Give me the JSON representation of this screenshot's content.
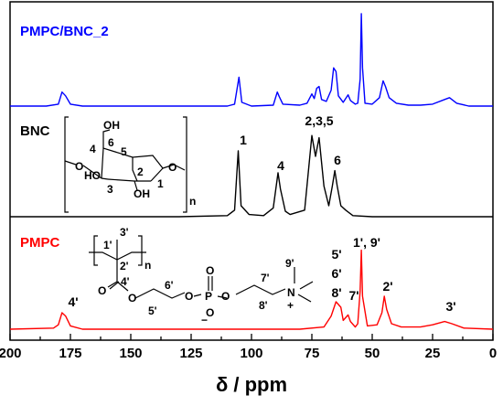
{
  "chart_data": {
    "type": "line",
    "xlabel": "δ / ppm",
    "xlim": [
      200,
      0
    ],
    "x_reversed": true,
    "xticks": [
      200,
      175,
      150,
      125,
      100,
      75,
      50,
      25,
      0
    ],
    "y_ticks_shown": false,
    "grid": false,
    "series": [
      {
        "name": "PMPC/BNC_2",
        "color": "#0000ff",
        "offset": 2,
        "points": [
          [
            200,
            0.01
          ],
          [
            185,
            0.01
          ],
          [
            180,
            0.03
          ],
          [
            178.5,
            0.16
          ],
          [
            177,
            0.12
          ],
          [
            175,
            0.03
          ],
          [
            170,
            0.01
          ],
          [
            150,
            0.01
          ],
          [
            130,
            0.01
          ],
          [
            110,
            0.01
          ],
          [
            107,
            0.03
          ],
          [
            105.2,
            0.32
          ],
          [
            104,
            0.05
          ],
          [
            100,
            0.01
          ],
          [
            91,
            0.02
          ],
          [
            89.3,
            0.16
          ],
          [
            88.5,
            0.11
          ],
          [
            87,
            0.03
          ],
          [
            80,
            0.02
          ],
          [
            77,
            0.04
          ],
          [
            75,
            0.14
          ],
          [
            74,
            0.09
          ],
          [
            73,
            0.2
          ],
          [
            72,
            0.22
          ],
          [
            71,
            0.08
          ],
          [
            69,
            0.06
          ],
          [
            67,
            0.18
          ],
          [
            66,
            0.42
          ],
          [
            65,
            0.38
          ],
          [
            64,
            0.12
          ],
          [
            62,
            0.05
          ],
          [
            60,
            0.13
          ],
          [
            59,
            0.07
          ],
          [
            57,
            0.03
          ],
          [
            56,
            0.04
          ],
          [
            55,
            0.3
          ],
          [
            54.5,
            1.0
          ],
          [
            54,
            0.42
          ],
          [
            53,
            0.04
          ],
          [
            50,
            0.03
          ],
          [
            47,
            0.1
          ],
          [
            45.5,
            0.28
          ],
          [
            44.5,
            0.22
          ],
          [
            43,
            0.1
          ],
          [
            40,
            0.04
          ],
          [
            35,
            0.02
          ],
          [
            30,
            0.02
          ],
          [
            25,
            0.03
          ],
          [
            20,
            0.08
          ],
          [
            18,
            0.1
          ],
          [
            15,
            0.04
          ],
          [
            10,
            0.01
          ],
          [
            0,
            0.01
          ]
        ]
      },
      {
        "name": "BNC",
        "color": "#000000",
        "offset": 1,
        "points": [
          [
            200,
            0.0
          ],
          [
            130,
            0.0
          ],
          [
            110,
            0.01
          ],
          [
            107,
            0.06
          ],
          [
            105.5,
            0.6
          ],
          [
            104.3,
            0.1
          ],
          [
            101,
            0.02
          ],
          [
            95,
            0.01
          ],
          [
            91,
            0.08
          ],
          [
            89,
            0.4
          ],
          [
            88,
            0.25
          ],
          [
            86,
            0.05
          ],
          [
            84,
            0.02
          ],
          [
            78,
            0.06
          ],
          [
            75,
            0.74
          ],
          [
            73.5,
            0.55
          ],
          [
            72,
            0.72
          ],
          [
            70,
            0.28
          ],
          [
            68,
            0.1
          ],
          [
            66.5,
            0.28
          ],
          [
            65.5,
            0.42
          ],
          [
            64.5,
            0.28
          ],
          [
            63,
            0.1
          ],
          [
            61,
            0.06
          ],
          [
            58,
            0.01
          ],
          [
            50,
            0.0
          ],
          [
            0,
            0.0
          ]
        ]
      },
      {
        "name": "PMPC",
        "color": "#ff0000",
        "offset": 0,
        "points": [
          [
            200,
            0.0
          ],
          [
            182,
            0.01
          ],
          [
            180,
            0.04
          ],
          [
            178.5,
            0.15
          ],
          [
            177,
            0.12
          ],
          [
            175,
            0.03
          ],
          [
            170,
            0.0
          ],
          [
            100,
            0.0
          ],
          [
            80,
            0.0
          ],
          [
            70,
            0.02
          ],
          [
            67,
            0.12
          ],
          [
            65,
            0.25
          ],
          [
            63,
            0.2
          ],
          [
            62,
            0.08
          ],
          [
            60,
            0.13
          ],
          [
            59,
            0.07
          ],
          [
            57,
            0.02
          ],
          [
            56,
            0.05
          ],
          [
            55,
            0.35
          ],
          [
            54.5,
            0.72
          ],
          [
            54,
            0.3
          ],
          [
            52,
            0.03
          ],
          [
            48,
            0.04
          ],
          [
            46,
            0.15
          ],
          [
            45,
            0.3
          ],
          [
            44,
            0.18
          ],
          [
            42,
            0.05
          ],
          [
            38,
            0.02
          ],
          [
            30,
            0.02
          ],
          [
            25,
            0.04
          ],
          [
            20,
            0.07
          ],
          [
            17,
            0.05
          ],
          [
            12,
            0.01
          ],
          [
            0,
            0.0
          ]
        ]
      }
    ],
    "series_labels": [
      "PMPC/BNC_2",
      "BNC",
      "PMPC"
    ],
    "peak_labels": [
      {
        "text": "1",
        "x": 105,
        "series": "BNC"
      },
      {
        "text": "4",
        "x": 89,
        "series": "BNC"
      },
      {
        "text": "2,3,5",
        "x": 73,
        "series": "BNC"
      },
      {
        "text": "6",
        "x": 65.5,
        "series": "BNC"
      },
      {
        "text": "4'",
        "x": 178,
        "series": "PMPC"
      },
      {
        "text": "5'",
        "x": 66,
        "series": "PMPC"
      },
      {
        "text": "6'",
        "x": 66,
        "series": "PMPC"
      },
      {
        "text": "8'",
        "x": 66,
        "series": "PMPC"
      },
      {
        "text": "7'",
        "x": 59.5,
        "series": "PMPC"
      },
      {
        "text": "1', 9'",
        "x": 54.5,
        "series": "PMPC"
      },
      {
        "text": "2'",
        "x": 45,
        "series": "PMPC"
      },
      {
        "text": "3'",
        "x": 18,
        "series": "PMPC"
      }
    ],
    "structure_labels": {
      "bnc": [
        "OH",
        "6",
        "4",
        "5",
        "O",
        "HO",
        "2",
        "3",
        "OH",
        "1",
        "O",
        "n"
      ],
      "pmpc": [
        "3'",
        "1'",
        "2'",
        "n",
        "4'",
        "O",
        "O",
        "6'",
        "O",
        "P",
        "O",
        "7'",
        "O",
        "O",
        "5'",
        "−",
        "8'",
        "9'",
        "N",
        "+"
      ]
    }
  }
}
